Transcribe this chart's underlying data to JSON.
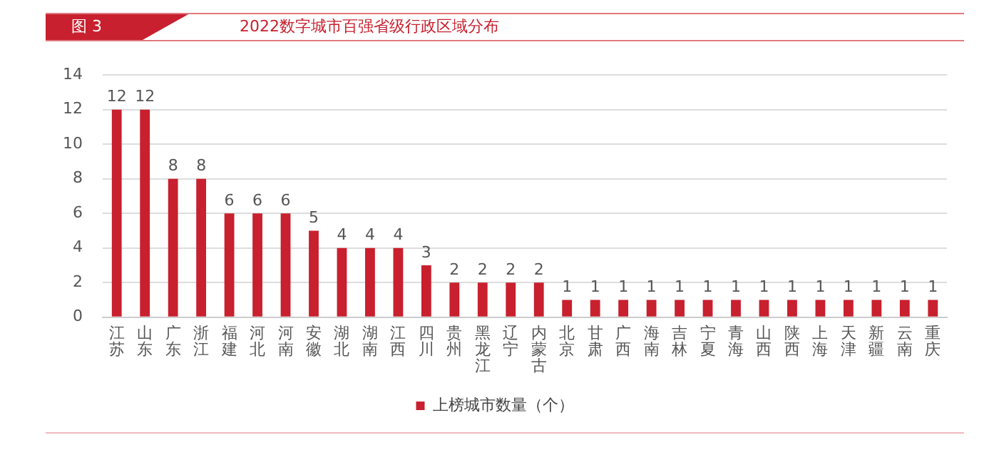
{
  "chart_data": {
    "type": "bar",
    "title": "2022数字城市百强省级行政区域分布",
    "annotations": [
      "图 3"
    ],
    "categories": [
      "江苏",
      "山东",
      "广东",
      "浙江",
      "福建",
      "河北",
      "河南",
      "安徽",
      "湖北",
      "湖南",
      "江西",
      "四川",
      "贵州",
      "黑龙江",
      "辽宁",
      "内蒙古",
      "北京",
      "甘肃",
      "广西",
      "海南",
      "吉林",
      "宁夏",
      "青海",
      "山西",
      "陕西",
      "上海",
      "天津",
      "新疆",
      "云南",
      "重庆"
    ],
    "series": [
      {
        "name": "上榜城市数量（个）",
        "color": "#c8202e",
        "values": [
          12,
          12,
          8,
          8,
          6,
          6,
          6,
          5,
          4,
          4,
          4,
          3,
          2,
          2,
          2,
          2,
          1,
          1,
          1,
          1,
          1,
          1,
          1,
          1,
          1,
          1,
          1,
          1,
          1,
          1
        ]
      }
    ],
    "ylim": [
      0,
      14
    ],
    "yticks": [
      0,
      2,
      4,
      6,
      8,
      10,
      12,
      14
    ],
    "grid": "y",
    "legend": "bottom",
    "data_labels": true
  }
}
